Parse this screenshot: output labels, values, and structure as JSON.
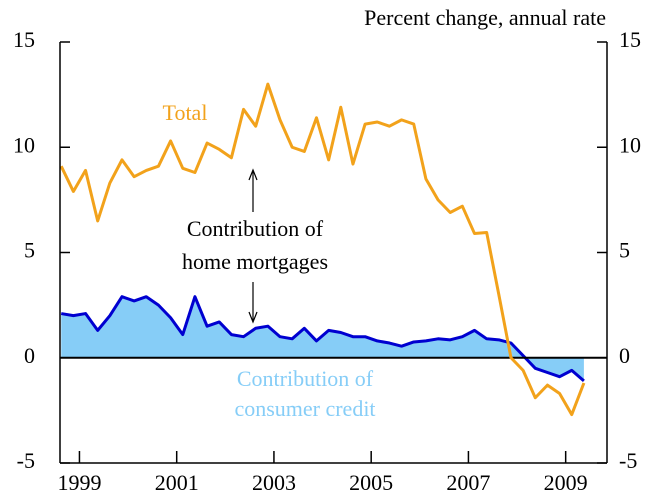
{
  "chart_data": {
    "type": "line",
    "y_label": "Percent change, annual rate",
    "annotations": [
      "Total",
      "Contribution of",
      "home mortgages",
      "Contribution of",
      "consumer credit"
    ],
    "x": [
      1999.125,
      1999.375,
      1999.625,
      1999.875,
      2000.125,
      2000.375,
      2000.625,
      2000.875,
      2001.125,
      2001.375,
      2001.625,
      2001.875,
      2002.125,
      2002.375,
      2002.625,
      2002.875,
      2003.125,
      2003.375,
      2003.625,
      2003.875,
      2004.125,
      2004.375,
      2004.625,
      2004.875,
      2005.125,
      2005.375,
      2005.625,
      2005.875,
      2006.125,
      2006.375,
      2006.625,
      2006.875,
      2007.125,
      2007.375,
      2007.625,
      2007.875,
      2008.125,
      2008.375,
      2008.625,
      2008.875,
      2009.125,
      2009.375,
      2009.625,
      2009.875
    ],
    "series": [
      {
        "name": "Total",
        "color": "#f2a21b",
        "values": [
          9.1,
          7.9,
          8.9,
          6.5,
          8.3,
          9.4,
          8.6,
          8.9,
          9.1,
          10.3,
          9.0,
          8.8,
          10.2,
          9.9,
          9.5,
          11.8,
          11.0,
          13.0,
          11.3,
          10.0,
          9.8,
          11.4,
          9.4,
          11.9,
          9.2,
          11.1,
          11.2,
          11.0,
          11.3,
          11.1,
          8.5,
          7.5,
          6.9,
          7.2,
          5.9,
          5.95,
          3.0,
          0.0,
          -0.6,
          -1.9,
          -1.3,
          -1.7,
          -2.7,
          -1.2
        ]
      },
      {
        "name": "Consumer credit",
        "color": "#0000d0",
        "fill": "#86cdf7",
        "values": [
          2.1,
          2.0,
          2.1,
          1.3,
          2.0,
          2.9,
          2.7,
          2.9,
          2.5,
          1.9,
          1.1,
          2.9,
          1.5,
          1.7,
          1.1,
          1.0,
          1.4,
          1.5,
          1.0,
          0.9,
          1.4,
          0.8,
          1.3,
          1.2,
          1.0,
          1.0,
          0.8,
          0.7,
          0.55,
          0.75,
          0.8,
          0.9,
          0.85,
          1.0,
          1.3,
          0.9,
          0.85,
          0.7,
          0.1,
          -0.5,
          -0.7,
          -0.9,
          -0.6,
          -1.1
        ]
      }
    ],
    "xlim": [
      1999.1,
      2010.35
    ],
    "xticks": [
      {
        "value": 1999.5,
        "label": "1999"
      },
      {
        "value": 2001.5,
        "label": "2001"
      },
      {
        "value": 2003.5,
        "label": "2003"
      },
      {
        "value": 2005.5,
        "label": "2005"
      },
      {
        "value": 2007.5,
        "label": "2007"
      },
      {
        "value": 2009.5,
        "label": "2009"
      }
    ],
    "ylim": [
      -5,
      15
    ],
    "yticks": [
      -5,
      0,
      5,
      10,
      15
    ]
  }
}
